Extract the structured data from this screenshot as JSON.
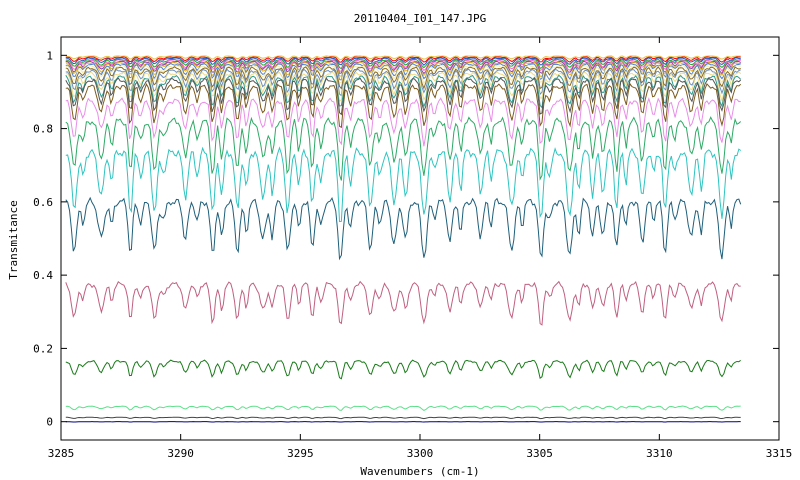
{
  "chart_data": {
    "type": "line",
    "title": "20110404_I01_147.JPG",
    "xlabel": "Wavenumbers (cm-1)",
    "ylabel": "Transmitance",
    "xlim": [
      3285,
      3315
    ],
    "ylim": [
      -0.05,
      1.05
    ],
    "x_ticks": [
      3285,
      3290,
      3295,
      3300,
      3305,
      3310,
      3315
    ],
    "y_ticks": [
      0,
      0.2,
      0.4,
      0.6,
      0.8,
      1
    ],
    "y_tick_labels": [
      "0",
      "0.2",
      "0.4",
      "0.6",
      "0.8",
      "1"
    ],
    "x_data_range": [
      3285.2,
      3313.4
    ],
    "grid": false,
    "legend": "none",
    "series": [
      {
        "color": "#e6c34a",
        "baseline": 0.998,
        "depth": 0.01
      },
      {
        "color": "#ff0000",
        "baseline": 0.995,
        "depth": 0.015
      },
      {
        "color": "#2255cc",
        "baseline": 0.992,
        "depth": 0.02
      },
      {
        "color": "#22aa22",
        "baseline": 0.988,
        "depth": 0.025
      },
      {
        "color": "#ff66cc",
        "baseline": 0.985,
        "depth": 0.03
      },
      {
        "color": "#8844aa",
        "baseline": 0.982,
        "depth": 0.035
      },
      {
        "color": "#e6b422",
        "baseline": 0.979,
        "depth": 0.04
      },
      {
        "color": "#4a7fd4",
        "baseline": 0.975,
        "depth": 0.045
      },
      {
        "color": "#f5e9a8",
        "baseline": 0.97,
        "depth": 0.05
      },
      {
        "color": "#8a6a20",
        "baseline": 0.965,
        "depth": 0.06
      },
      {
        "color": "#6a8fbf",
        "baseline": 0.958,
        "depth": 0.07
      },
      {
        "color": "#f0dc88",
        "baseline": 0.95,
        "depth": 0.08
      },
      {
        "color": "#2f9a8a",
        "baseline": 0.94,
        "depth": 0.09
      },
      {
        "color": "#555555",
        "baseline": 0.932,
        "depth": 0.1
      },
      {
        "color": "#7b5a1c",
        "baseline": 0.915,
        "depth": 0.12
      },
      {
        "color": "#e88ee8",
        "baseline": 0.875,
        "depth": 0.13
      },
      {
        "color": "#2eaa66",
        "baseline": 0.82,
        "depth": 0.17
      },
      {
        "color": "#2ec4c0",
        "baseline": 0.735,
        "depth": 0.2
      },
      {
        "color": "#1f5f7a",
        "baseline": 0.6,
        "depth": 0.17
      },
      {
        "color": "#c06080",
        "baseline": 0.375,
        "depth": 0.12
      },
      {
        "color": "#1a7a1a",
        "baseline": 0.165,
        "depth": 0.05
      },
      {
        "color": "#5ee08a",
        "baseline": 0.042,
        "depth": 0.012
      },
      {
        "color": "#444444",
        "baseline": 0.012,
        "depth": 0.004
      },
      {
        "color": "#000080",
        "baseline": 0.0,
        "depth": 0.001
      }
    ]
  }
}
